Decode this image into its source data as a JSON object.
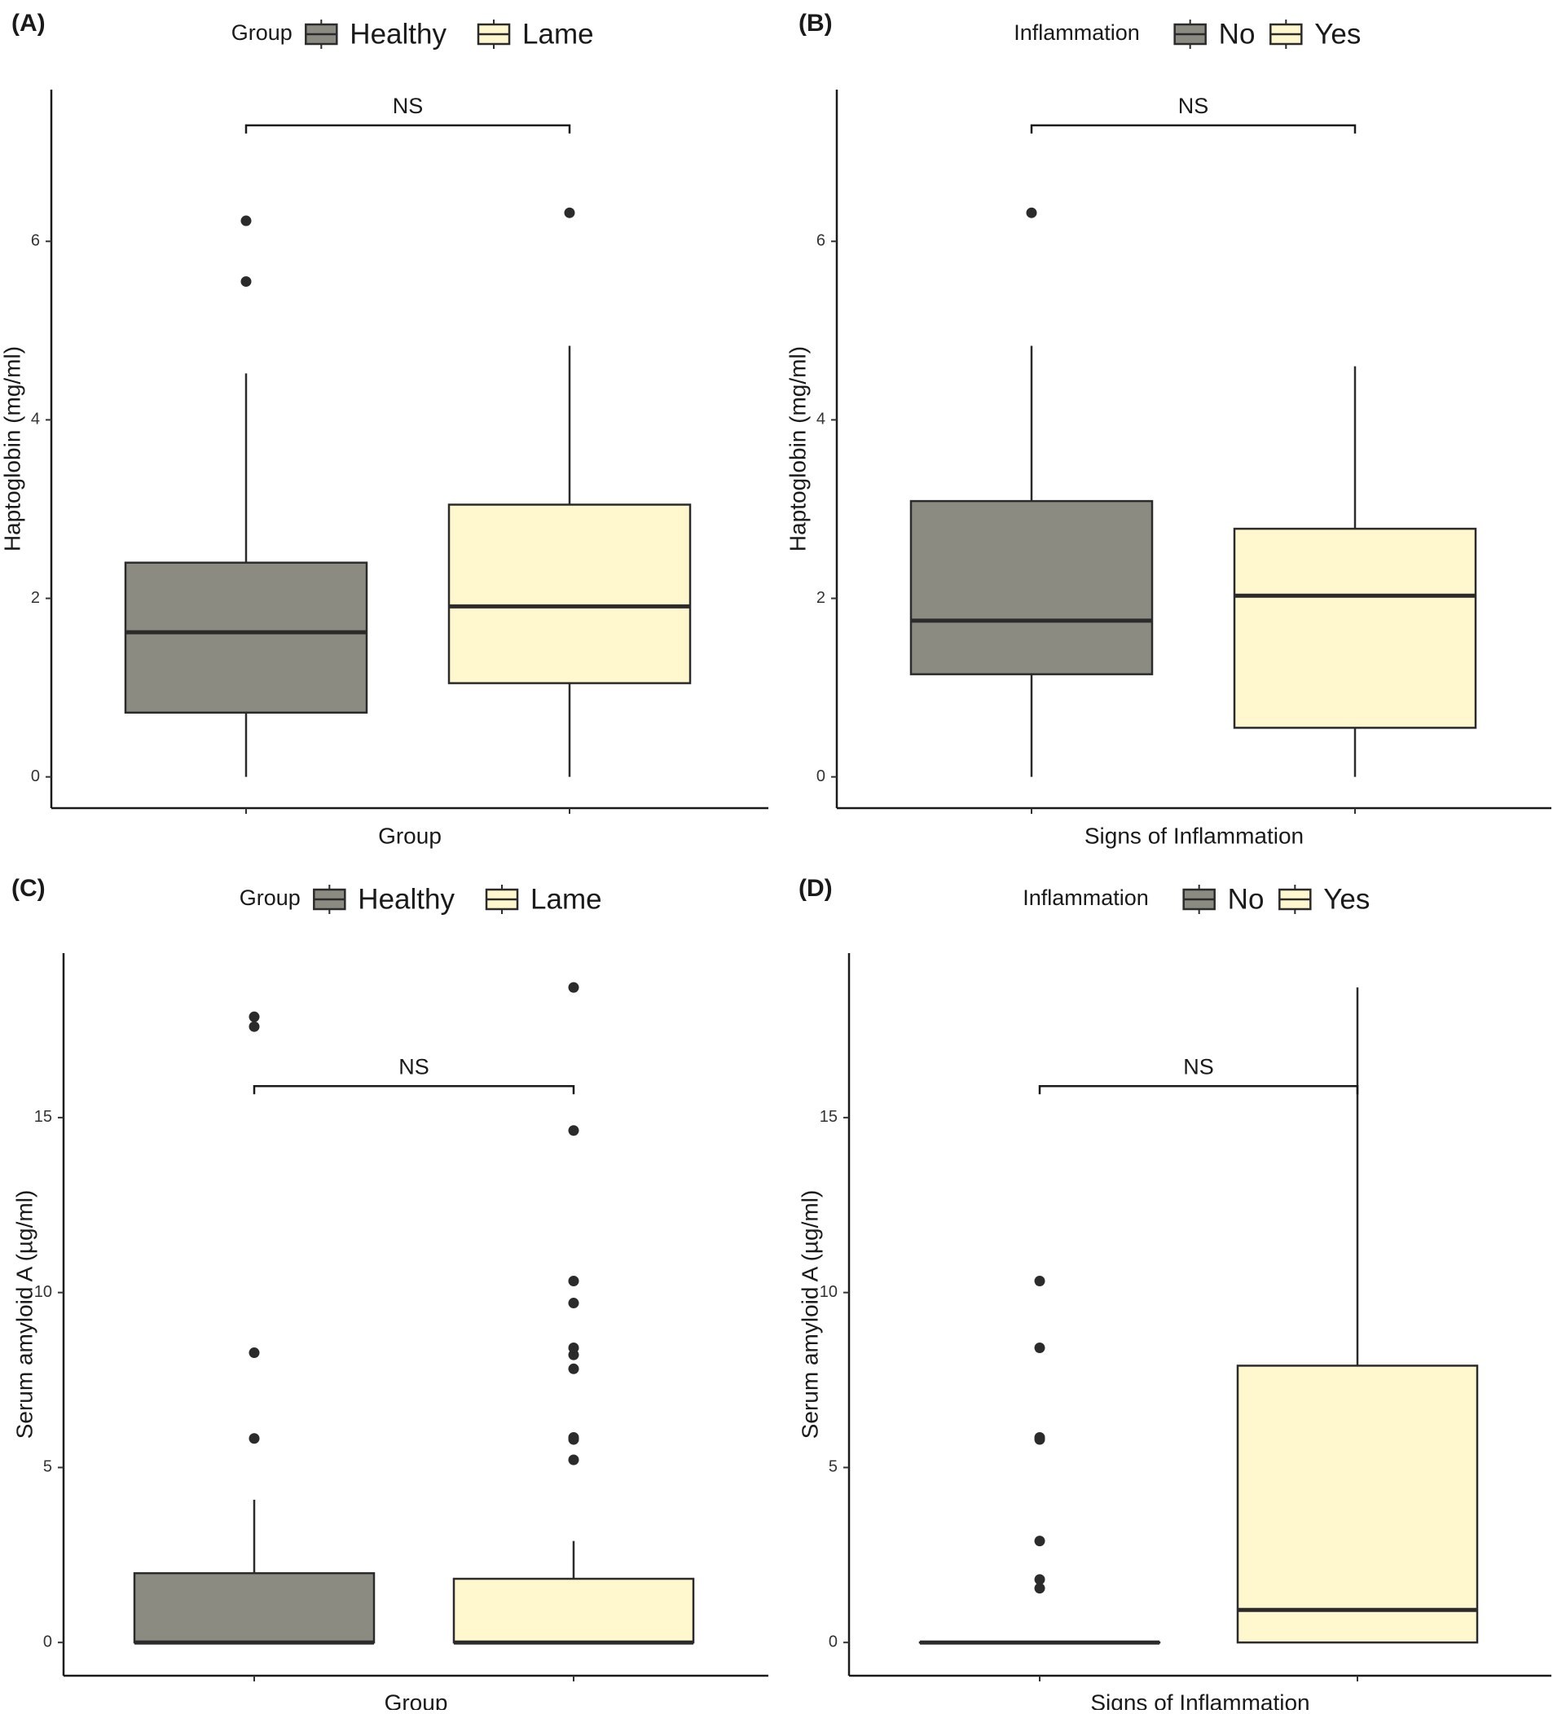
{
  "figure": {
    "description_free": true
  },
  "chart_data": [
    {
      "panel": "(A)",
      "type": "boxplot",
      "legend_title": "Group",
      "legend_entries": [
        "Healthy",
        "Lame"
      ],
      "xlabel": "Group",
      "ylabel": "Haptoglobin (mg/ml)",
      "ylim": [
        -0.35,
        7.7
      ],
      "yticks": [
        0,
        2,
        4,
        6
      ],
      "tick_labels": [
        "0",
        "2",
        "4",
        "6"
      ],
      "colors": [
        "#8c8b82",
        "#fff8cf"
      ],
      "significance": {
        "label": "NS",
        "y": 7.3
      },
      "series": [
        {
          "name": "Healthy",
          "whisker_low": 0.0,
          "q1": 0.72,
          "median": 1.62,
          "q3": 2.4,
          "whisker_high": 4.52,
          "outliers": [
            5.55,
            6.23
          ]
        },
        {
          "name": "Lame",
          "whisker_low": 0.0,
          "q1": 1.05,
          "median": 1.91,
          "q3": 3.05,
          "whisker_high": 4.83,
          "outliers": [
            6.32
          ]
        }
      ]
    },
    {
      "panel": "(B)",
      "type": "boxplot",
      "legend_title": "Inflammation",
      "legend_entries": [
        "No",
        "Yes"
      ],
      "xlabel": "Signs of Inflammation",
      "ylabel": "Haptoglobin (mg/ml)",
      "ylim": [
        -0.35,
        7.7
      ],
      "yticks": [
        0,
        2,
        4,
        6
      ],
      "tick_labels": [
        "0",
        "2",
        "4",
        "6"
      ],
      "colors": [
        "#8c8b82",
        "#fff8cf"
      ],
      "significance": {
        "label": "NS",
        "y": 7.3
      },
      "series": [
        {
          "name": "No",
          "whisker_low": 0.0,
          "q1": 1.15,
          "median": 1.75,
          "q3": 3.09,
          "whisker_high": 4.83,
          "outliers": [
            6.32
          ]
        },
        {
          "name": "Yes",
          "whisker_low": 0.0,
          "q1": 0.55,
          "median": 2.03,
          "q3": 2.78,
          "whisker_high": 4.6,
          "outliers": []
        }
      ]
    },
    {
      "panel": "(C)",
      "type": "boxplot",
      "legend_title": "Group",
      "legend_entries": [
        "Healthy",
        "Lame"
      ],
      "xlabel": "Group",
      "ylabel": "Serum amyloid A (µg/ml)",
      "ylim": [
        -0.95,
        19.7
      ],
      "yticks": [
        0,
        5,
        10,
        15
      ],
      "tick_labels": [
        "0",
        "5",
        "10",
        "15"
      ],
      "colors": [
        "#8c8b82",
        "#fff8cf"
      ],
      "significance": {
        "label": "NS",
        "y": 15.9
      },
      "series": [
        {
          "name": "Healthy",
          "whisker_low": 0.0,
          "q1": 0.0,
          "median": 0.0,
          "q3": 1.98,
          "whisker_high": 4.08,
          "outliers": [
            5.83,
            8.28,
            17.6,
            17.88
          ]
        },
        {
          "name": "Lame",
          "whisker_low": 0.0,
          "q1": 0.0,
          "median": 0.0,
          "q3": 1.82,
          "whisker_high": 2.9,
          "outliers": [
            5.22,
            5.8,
            5.86,
            7.82,
            8.22,
            8.42,
            9.7,
            10.33,
            14.63,
            18.72
          ]
        }
      ]
    },
    {
      "panel": "(D)",
      "type": "boxplot",
      "legend_title": "Inflammation",
      "legend_entries": [
        "No",
        "Yes"
      ],
      "xlabel": "Signs of Inflammation",
      "ylabel": "Serum amyloid A (µg/ml)",
      "ylim": [
        -0.95,
        19.7
      ],
      "yticks": [
        0,
        5,
        10,
        15
      ],
      "tick_labels": [
        "0",
        "5",
        "10",
        "15"
      ],
      "colors": [
        "#8c8b82",
        "#fff8cf"
      ],
      "significance": {
        "label": "NS",
        "y": 15.9
      },
      "series": [
        {
          "name": "No",
          "whisker_low": 0.0,
          "q1": 0.0,
          "median": 0.0,
          "q3": 0.0,
          "whisker_high": 0.0,
          "outliers": [
            1.55,
            1.8,
            2.9,
            5.8,
            5.86,
            8.42,
            10.33
          ]
        },
        {
          "name": "Yes",
          "whisker_low": 0.0,
          "q1": 0.0,
          "median": 0.93,
          "q3": 7.91,
          "whisker_high": 18.72,
          "outliers": []
        }
      ]
    }
  ]
}
